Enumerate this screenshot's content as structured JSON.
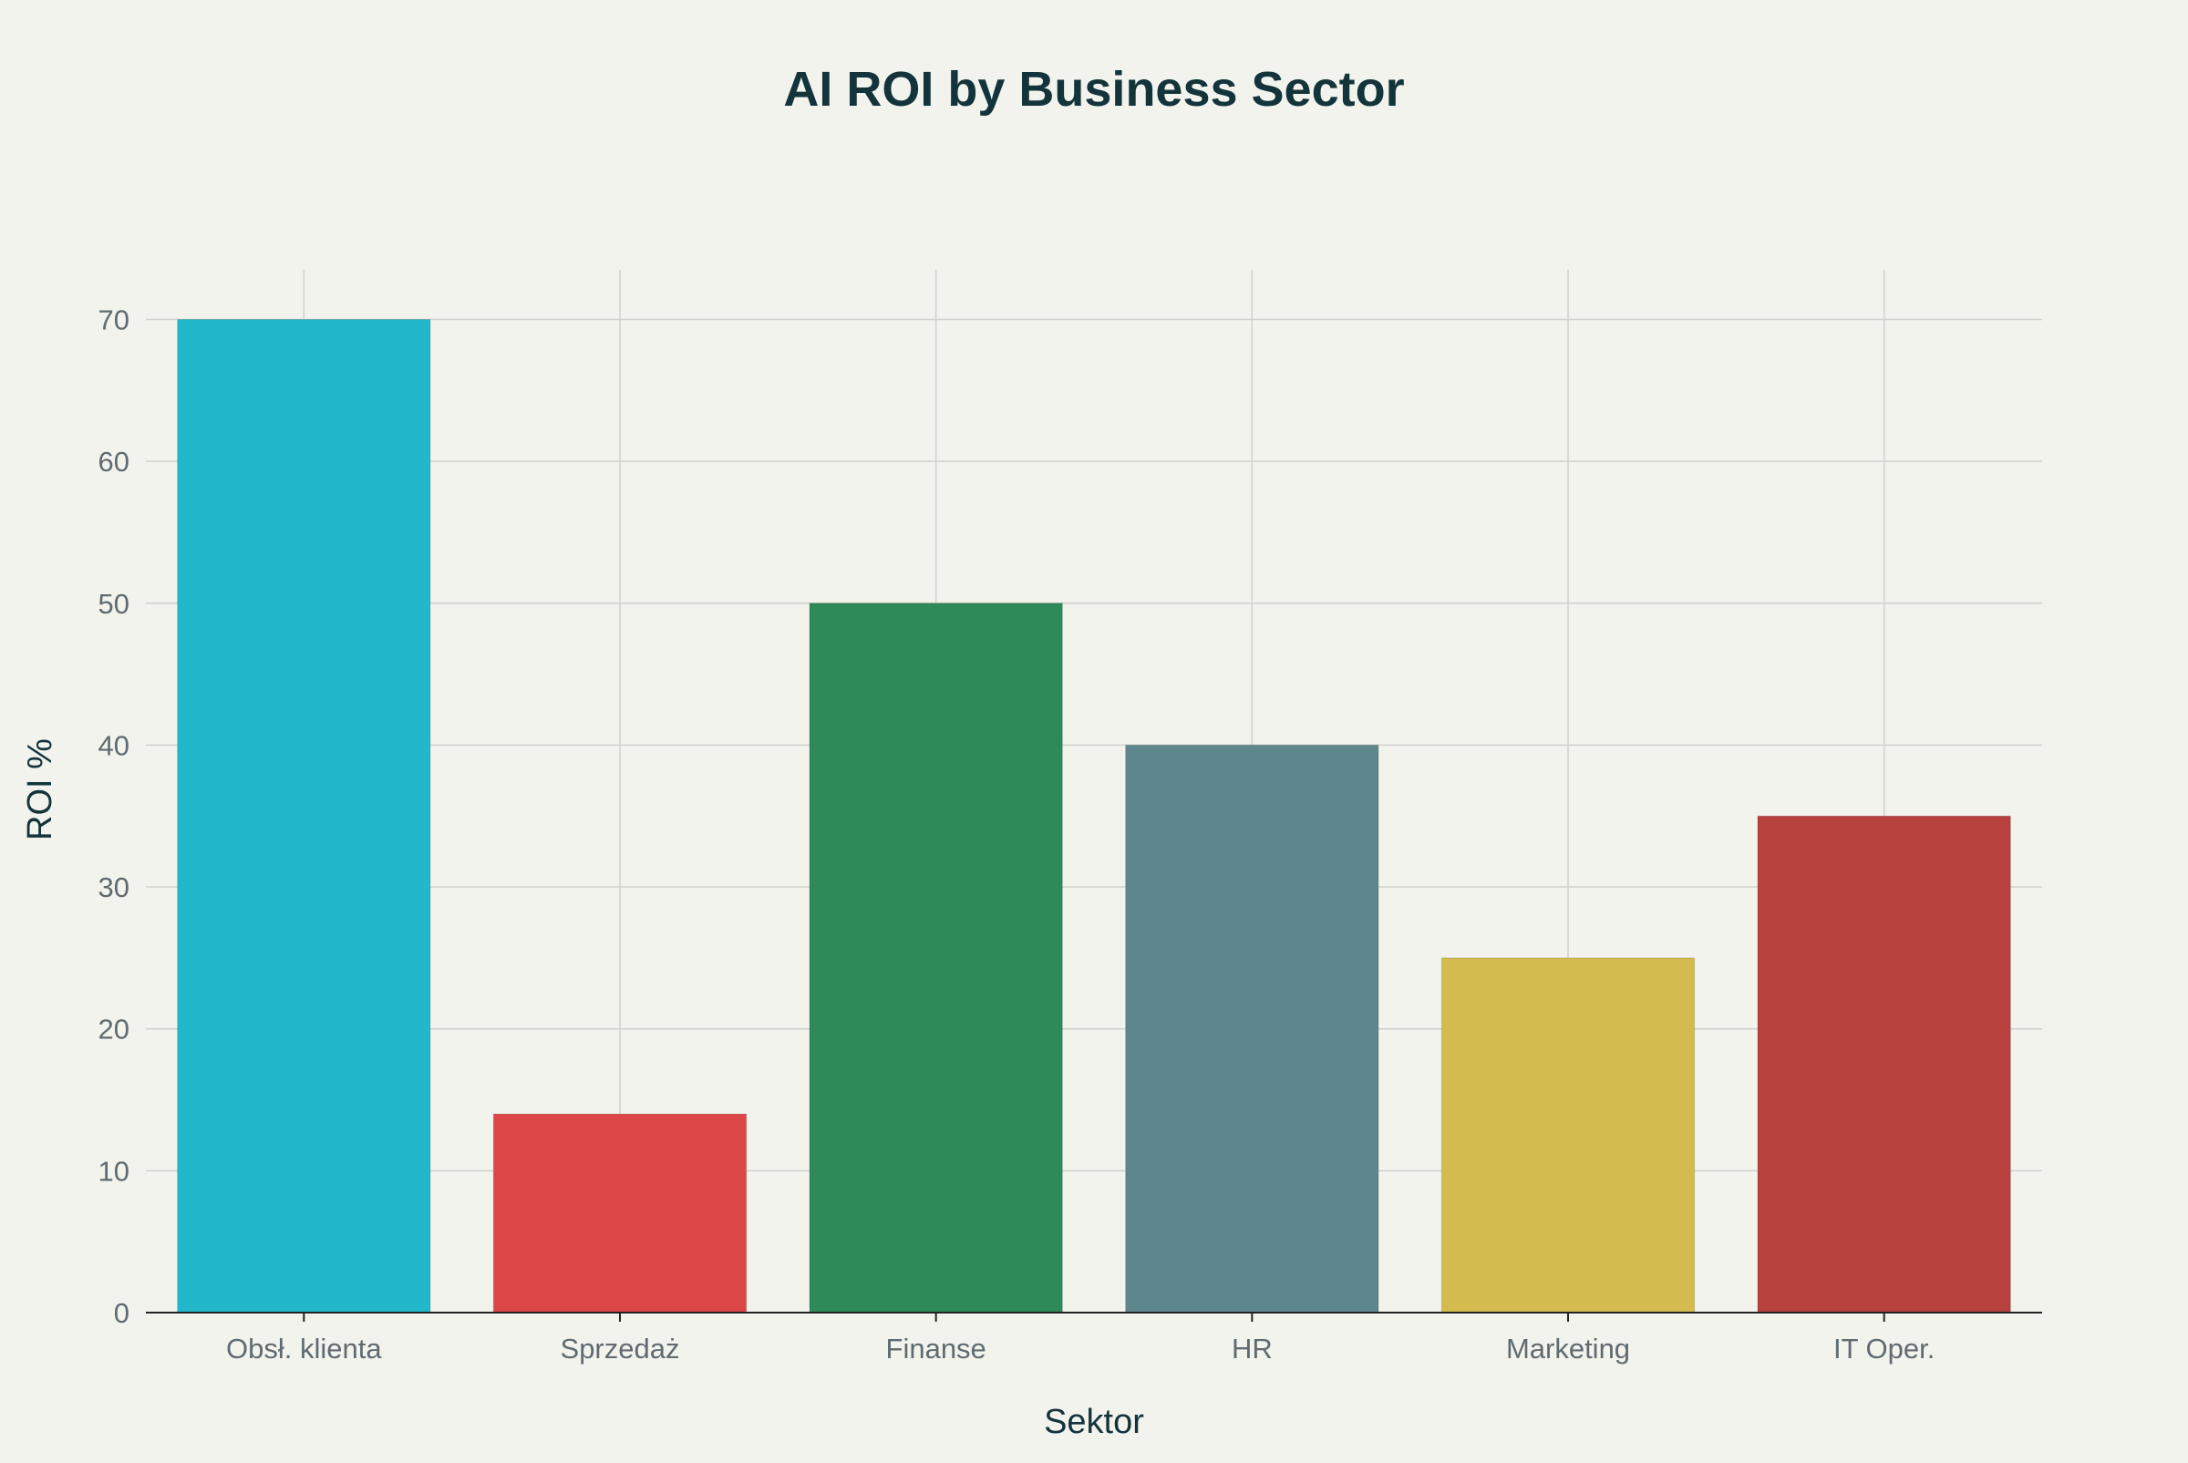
{
  "chart_data": {
    "type": "bar",
    "title": "AI ROI by Business Sector",
    "xlabel": "Sektor",
    "ylabel": "ROI %",
    "categories": [
      "Obsł. klienta",
      "Sprzedaż",
      "Finanse",
      "HR",
      "Marketing",
      "IT Oper."
    ],
    "values": [
      70,
      14,
      50,
      40,
      25,
      35
    ],
    "colors": [
      "#21b8cc",
      "#dc4646",
      "#2e8a59",
      "#5e878d",
      "#d3bb4e",
      "#b7413d"
    ],
    "ylim": [
      0,
      73.5
    ],
    "yticks": [
      0,
      10,
      20,
      30,
      40,
      50,
      60,
      70
    ],
    "grid": true,
    "legend": "none"
  }
}
